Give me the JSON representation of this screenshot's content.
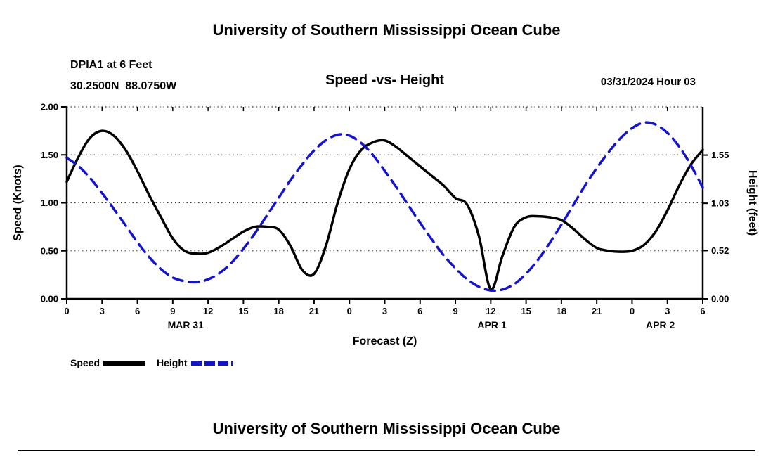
{
  "header": {
    "title": "University of Southern Mississippi Ocean Cube",
    "station": "DPIA1 at 6 Feet",
    "coords": "30.2500N  88.0750W",
    "plot_title": "Speed -vs- Height",
    "run_time": "03/31/2024 Hour 03"
  },
  "footer": {
    "title": "University of Southern Mississippi Ocean Cube"
  },
  "legend": {
    "items": [
      {
        "label": "Speed",
        "color": "#000000",
        "style": "solid"
      },
      {
        "label": "Height",
        "color": "#1414cc",
        "style": "dashed"
      }
    ]
  },
  "colors": {
    "speed": "#000000",
    "height": "#1414cc",
    "text": "#000000"
  },
  "chart_data": {
    "type": "line",
    "title": "Speed -vs- Height",
    "xlabel": "Forecast (Z)",
    "x_range": [
      0,
      54
    ],
    "x_step_hours": 1,
    "x_ticks": [
      {
        "hour": 0,
        "label": "0"
      },
      {
        "hour": 3,
        "label": "3"
      },
      {
        "hour": 6,
        "label": "6"
      },
      {
        "hour": 9,
        "label": "9"
      },
      {
        "hour": 12,
        "label": "12"
      },
      {
        "hour": 15,
        "label": "15"
      },
      {
        "hour": 18,
        "label": "18"
      },
      {
        "hour": 21,
        "label": "21"
      },
      {
        "hour": 24,
        "label": "0"
      },
      {
        "hour": 27,
        "label": "3"
      },
      {
        "hour": 30,
        "label": "6"
      },
      {
        "hour": 33,
        "label": "9"
      },
      {
        "hour": 36,
        "label": "12"
      },
      {
        "hour": 39,
        "label": "15"
      },
      {
        "hour": 42,
        "label": "18"
      },
      {
        "hour": 45,
        "label": "21"
      },
      {
        "hour": 48,
        "label": "0"
      },
      {
        "hour": 51,
        "label": "3"
      },
      {
        "hour": 54,
        "label": "6"
      }
    ],
    "day_labels": [
      {
        "hour": 10.1,
        "label": "MAR 31"
      },
      {
        "hour": 36.1,
        "label": "APR 1"
      },
      {
        "hour": 50.4,
        "label": "APR 2"
      }
    ],
    "left_axis": {
      "label": "Speed (Knots)",
      "range": [
        0,
        2
      ],
      "ticks": [
        {
          "value": 0.0,
          "label": "0.00"
        },
        {
          "value": 0.5,
          "label": "0.50"
        },
        {
          "value": 1.0,
          "label": "1.00"
        },
        {
          "value": 1.5,
          "label": "1.50"
        },
        {
          "value": 2.0,
          "label": "2.00"
        }
      ]
    },
    "right_axis": {
      "label": "Height (feet)",
      "range": [
        0,
        2.07
      ],
      "ticks": [
        {
          "value": 0.0,
          "label": "0.00"
        },
        {
          "value": 0.52,
          "label": "0.52"
        },
        {
          "value": 1.03,
          "label": "1.03"
        },
        {
          "value": 1.55,
          "label": "1.55"
        }
      ]
    },
    "grid": "horizontal-dotted",
    "legend_position": "below-left",
    "series": [
      {
        "name": "Speed",
        "axis": "left",
        "color": "#000000",
        "dash": null,
        "values": [
          1.22,
          1.48,
          1.68,
          1.75,
          1.7,
          1.55,
          1.33,
          1.08,
          0.85,
          0.63,
          0.5,
          0.47,
          0.48,
          0.54,
          0.62,
          0.7,
          0.75,
          0.75,
          0.72,
          0.55,
          0.3,
          0.26,
          0.55,
          1.0,
          1.35,
          1.55,
          1.63,
          1.65,
          1.58,
          1.48,
          1.38,
          1.28,
          1.18,
          1.05,
          0.98,
          0.65,
          0.1,
          0.45,
          0.75,
          0.85,
          0.86,
          0.85,
          0.82,
          0.73,
          0.62,
          0.53,
          0.5,
          0.49,
          0.5,
          0.56,
          0.7,
          0.92,
          1.18,
          1.4,
          1.55
        ]
      },
      {
        "name": "Height",
        "axis": "right",
        "color": "#1414cc",
        "dash": [
          14,
          9
        ],
        "values": [
          1.52,
          1.43,
          1.3,
          1.14,
          0.97,
          0.79,
          0.61,
          0.45,
          0.32,
          0.23,
          0.19,
          0.18,
          0.21,
          0.28,
          0.39,
          0.54,
          0.71,
          0.9,
          1.09,
          1.28,
          1.45,
          1.6,
          1.71,
          1.77,
          1.76,
          1.68,
          1.55,
          1.38,
          1.2,
          1.01,
          0.82,
          0.64,
          0.47,
          0.33,
          0.21,
          0.13,
          0.09,
          0.1,
          0.16,
          0.27,
          0.42,
          0.6,
          0.8,
          1.01,
          1.22,
          1.41,
          1.58,
          1.73,
          1.84,
          1.9,
          1.88,
          1.79,
          1.64,
          1.44,
          1.2
        ]
      }
    ]
  }
}
